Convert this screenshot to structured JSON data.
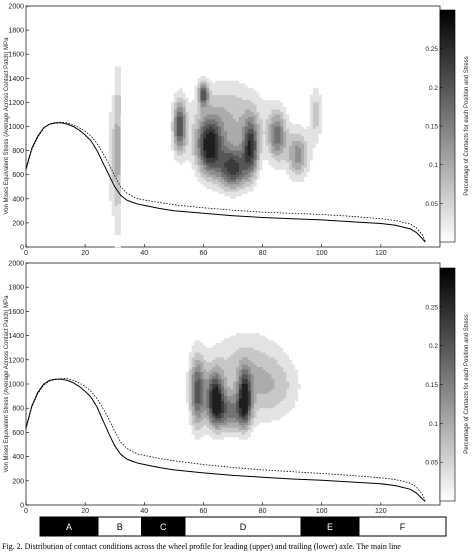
{
  "chart_data": [
    {
      "type": "contour",
      "xlim": [
        0,
        140
      ],
      "ylim": [
        0,
        2000
      ],
      "x_ticks": [
        "0",
        "20",
        "40",
        "60",
        "80",
        "100",
        "120"
      ],
      "y_ticks": [
        "0",
        "200",
        "400",
        "600",
        "800",
        "1000",
        "1200",
        "1400",
        "1600",
        "1800",
        "2000"
      ],
      "ylabel": "Von Mises Equivalent Stress (Average Across Contact Patch) MPa",
      "colorbar": {
        "label": "Percentage of Contacts for each Position and Stress",
        "range": [
          0,
          0.3
        ],
        "ticks": [
          "0.05",
          "0.1",
          "0.15",
          "0.2",
          "0.25"
        ]
      },
      "series": [
        {
          "style": "solid",
          "x": [
            0,
            2,
            4,
            6,
            8,
            10,
            12,
            14,
            16,
            18,
            20,
            22,
            24,
            26,
            28,
            30,
            32,
            34,
            36,
            38,
            40,
            45,
            50,
            60,
            70,
            80,
            90,
            100,
            110,
            120,
            125,
            130,
            132,
            134,
            135
          ],
          "y": [
            650,
            820,
            920,
            990,
            1020,
            1030,
            1030,
            1020,
            1000,
            970,
            930,
            880,
            800,
            700,
            600,
            500,
            430,
            390,
            370,
            355,
            345,
            320,
            300,
            280,
            260,
            245,
            235,
            225,
            210,
            195,
            180,
            150,
            120,
            70,
            40
          ]
        },
        {
          "style": "dotted",
          "x": [
            0,
            2,
            4,
            6,
            8,
            10,
            12,
            14,
            16,
            18,
            20,
            22,
            24,
            26,
            28,
            30,
            32,
            34,
            36,
            38,
            40,
            45,
            50,
            60,
            70,
            80,
            90,
            100,
            110,
            120,
            125,
            130,
            132,
            134,
            135
          ],
          "y": [
            640,
            810,
            910,
            985,
            1020,
            1035,
            1035,
            1030,
            1015,
            990,
            960,
            920,
            860,
            780,
            690,
            590,
            500,
            450,
            420,
            400,
            390,
            370,
            350,
            325,
            305,
            290,
            280,
            270,
            255,
            235,
            220,
            190,
            160,
            100,
            50
          ]
        }
      ],
      "density": [
        {
          "x": 31,
          "y": 800,
          "sx": 0.8,
          "sy": 450,
          "w": 0.5
        },
        {
          "x": 29,
          "y": 750,
          "sx": 0.6,
          "sy": 350,
          "w": 0.3
        },
        {
          "x": 52,
          "y": 1000,
          "sx": 1.5,
          "sy": 150,
          "w": 0.8
        },
        {
          "x": 60,
          "y": 1270,
          "sx": 1.2,
          "sy": 70,
          "w": 0.75
        },
        {
          "x": 62,
          "y": 830,
          "sx": 3.0,
          "sy": 160,
          "w": 1.0
        },
        {
          "x": 70,
          "y": 650,
          "sx": 3.5,
          "sy": 120,
          "w": 0.9
        },
        {
          "x": 76,
          "y": 830,
          "sx": 1.8,
          "sy": 160,
          "w": 0.8
        },
        {
          "x": 85,
          "y": 920,
          "sx": 2.0,
          "sy": 140,
          "w": 0.6
        },
        {
          "x": 92,
          "y": 760,
          "sx": 2.5,
          "sy": 130,
          "w": 0.55
        },
        {
          "x": 98,
          "y": 1100,
          "sx": 1.5,
          "sy": 170,
          "w": 0.3
        },
        {
          "x": 70,
          "y": 1000,
          "sx": 12,
          "sy": 220,
          "w": 0.25
        },
        {
          "x": 68,
          "y": 1150,
          "sx": 6,
          "sy": 200,
          "w": 0.15
        }
      ]
    },
    {
      "type": "contour",
      "xlim": [
        0,
        140
      ],
      "ylim": [
        0,
        2000
      ],
      "x_ticks": [
        "0",
        "20",
        "40",
        "60",
        "80",
        "100",
        "120"
      ],
      "y_ticks": [
        "0",
        "200",
        "400",
        "600",
        "800",
        "1000",
        "1200",
        "1400",
        "1600",
        "1800",
        "2000"
      ],
      "ylabel": "Von Mises Equivalent Stress (Average Across Contact Patch) MPa",
      "colorbar": {
        "label": "Percentage of Contacts for each Position and Stress",
        "range": [
          0,
          0.3
        ],
        "ticks": [
          "0.05",
          "0.1",
          "0.15",
          "0.2",
          "0.25"
        ]
      },
      "series": [
        {
          "style": "solid",
          "x": [
            0,
            2,
            4,
            6,
            8,
            10,
            12,
            14,
            16,
            18,
            20,
            22,
            24,
            26,
            28,
            30,
            32,
            34,
            36,
            38,
            40,
            45,
            50,
            60,
            70,
            80,
            90,
            100,
            110,
            120,
            125,
            130,
            132,
            134,
            135
          ],
          "y": [
            640,
            820,
            930,
            1000,
            1030,
            1040,
            1040,
            1030,
            1010,
            980,
            940,
            890,
            810,
            700,
            590,
            490,
            420,
            380,
            360,
            345,
            335,
            310,
            290,
            265,
            245,
            230,
            215,
            205,
            190,
            175,
            160,
            130,
            100,
            50,
            30
          ]
        },
        {
          "style": "dotted",
          "x": [
            0,
            2,
            4,
            6,
            8,
            10,
            12,
            14,
            16,
            18,
            20,
            22,
            24,
            26,
            28,
            30,
            32,
            34,
            36,
            38,
            40,
            45,
            50,
            60,
            70,
            80,
            90,
            100,
            110,
            120,
            125,
            130,
            132,
            134,
            135
          ],
          "y": [
            630,
            810,
            920,
            990,
            1025,
            1040,
            1045,
            1045,
            1030,
            1010,
            980,
            940,
            880,
            800,
            710,
            610,
            520,
            470,
            440,
            420,
            410,
            385,
            365,
            335,
            310,
            290,
            275,
            260,
            245,
            225,
            210,
            180,
            150,
            90,
            40
          ]
        }
      ],
      "density": [
        {
          "x": 58,
          "y": 930,
          "sx": 1.8,
          "sy": 200,
          "w": 0.8
        },
        {
          "x": 64,
          "y": 880,
          "sx": 2.0,
          "sy": 150,
          "w": 1.0
        },
        {
          "x": 74,
          "y": 880,
          "sx": 1.5,
          "sy": 150,
          "w": 0.9
        },
        {
          "x": 69,
          "y": 760,
          "sx": 4.0,
          "sy": 110,
          "w": 0.55
        },
        {
          "x": 76,
          "y": 1050,
          "sx": 8,
          "sy": 250,
          "w": 0.25
        },
        {
          "x": 85,
          "y": 960,
          "sx": 6,
          "sy": 180,
          "w": 0.2
        },
        {
          "x": 70,
          "y": 1150,
          "sx": 10,
          "sy": 200,
          "w": 0.12
        }
      ]
    }
  ],
  "segments": [
    {
      "label": "A",
      "start": 0,
      "end": 20,
      "fill": "#000000"
    },
    {
      "label": "B",
      "start": 20,
      "end": 35,
      "fill": "#ffffff"
    },
    {
      "label": "C",
      "start": 35,
      "end": 50,
      "fill": "#000000"
    },
    {
      "label": "D",
      "start": 50,
      "end": 90,
      "fill": "#ffffff"
    },
    {
      "label": "E",
      "start": 90,
      "end": 110,
      "fill": "#000000"
    },
    {
      "label": "F",
      "start": 110,
      "end": 140,
      "fill": "#ffffff"
    }
  ],
  "caption": "Fig. 2. Distribution of contact conditions across the wheel profile for leading (upper) and trailing (lower) axle. The main line"
}
